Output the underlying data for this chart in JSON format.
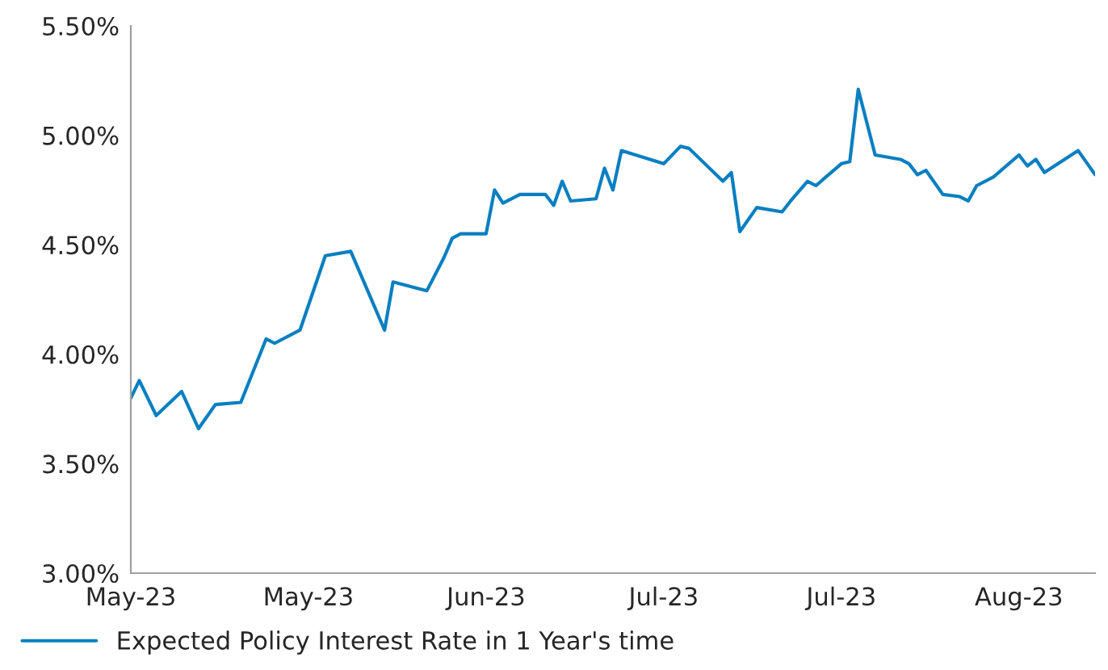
{
  "chart_data": {
    "type": "line",
    "x": [
      "2023-05-01",
      "2023-05-02",
      "2023-05-04",
      "2023-05-07",
      "2023-05-09",
      "2023-05-11",
      "2023-05-14",
      "2023-05-17",
      "2023-05-18",
      "2023-05-21",
      "2023-05-24",
      "2023-05-27",
      "2023-05-29",
      "2023-05-31",
      "2023-06-01",
      "2023-06-05",
      "2023-06-07",
      "2023-06-08",
      "2023-06-09",
      "2023-06-12",
      "2023-06-13",
      "2023-06-14",
      "2023-06-16",
      "2023-06-19",
      "2023-06-20",
      "2023-06-21",
      "2023-06-22",
      "2023-06-25",
      "2023-06-26",
      "2023-06-27",
      "2023-06-28",
      "2023-07-03",
      "2023-07-05",
      "2023-07-06",
      "2023-07-10",
      "2023-07-11",
      "2023-07-12",
      "2023-07-14",
      "2023-07-17",
      "2023-07-18",
      "2023-07-20",
      "2023-07-21",
      "2023-07-24",
      "2023-07-25",
      "2023-07-26",
      "2023-07-28",
      "2023-07-31",
      "2023-08-01",
      "2023-08-02",
      "2023-08-03",
      "2023-08-05",
      "2023-08-07",
      "2023-08-08",
      "2023-08-09",
      "2023-08-11",
      "2023-08-14",
      "2023-08-15",
      "2023-08-16",
      "2023-08-17",
      "2023-08-21",
      "2023-08-23"
    ],
    "series": [
      {
        "name": "Expected Policy Interest Rate in 1 Year's time",
        "color": "#0a7fc0",
        "values": [
          3.8,
          3.88,
          3.72,
          3.83,
          3.66,
          3.77,
          3.78,
          4.07,
          4.05,
          4.11,
          4.45,
          4.47,
          4.29,
          4.11,
          4.33,
          4.29,
          4.44,
          4.53,
          4.55,
          4.55,
          4.75,
          4.69,
          4.73,
          4.73,
          4.68,
          4.79,
          4.7,
          4.71,
          4.85,
          4.75,
          4.93,
          4.87,
          4.95,
          4.94,
          4.79,
          4.83,
          4.56,
          4.67,
          4.65,
          4.7,
          4.79,
          4.77,
          4.87,
          4.88,
          5.21,
          4.91,
          4.89,
          4.87,
          4.82,
          4.84,
          4.73,
          4.72,
          4.7,
          4.77,
          4.81,
          4.91,
          4.86,
          4.89,
          4.83,
          4.93,
          4.82
        ]
      }
    ],
    "xlim": [
      "2023-05-01",
      "2023-08-23"
    ],
    "xticks": [
      {
        "value": "2023-05-01",
        "label": "May-23"
      },
      {
        "value": "2023-05-22",
        "label": "May-23"
      },
      {
        "value": "2023-06-12",
        "label": "Jun-23"
      },
      {
        "value": "2023-07-03",
        "label": "Jul-23"
      },
      {
        "value": "2023-07-24",
        "label": "Jul-23"
      },
      {
        "value": "2023-08-14",
        "label": "Aug-23"
      }
    ],
    "ylim": [
      3.0,
      5.5
    ],
    "yticks": [
      {
        "value": 3.0,
        "label": "3.00%"
      },
      {
        "value": 3.5,
        "label": "3.50%"
      },
      {
        "value": 4.0,
        "label": "4.00%"
      },
      {
        "value": 4.5,
        "label": "4.50%"
      },
      {
        "value": 5.0,
        "label": "5.00%"
      },
      {
        "value": 5.5,
        "label": "5.50%"
      }
    ],
    "grid": false,
    "legend": "bottom left",
    "line_style": "solid"
  }
}
